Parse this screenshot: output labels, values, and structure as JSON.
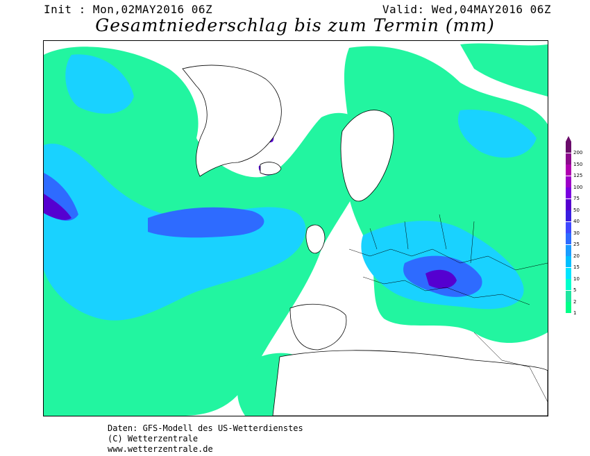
{
  "header": {
    "init": "Init : Mon,02MAY2016 06Z",
    "valid": "Valid: Wed,04MAY2016 06Z",
    "title": "Gesamtniederschlag bis zum Termin (mm)"
  },
  "legend": {
    "values": [
      "1",
      "2",
      "5",
      "10",
      "15",
      "20",
      "25",
      "30",
      "40",
      "50",
      "75",
      "100",
      "125",
      "150",
      "200"
    ],
    "colors": [
      "#00ff88",
      "#1ee6a0",
      "#00ffcc",
      "#00e5ff",
      "#00bfff",
      "#1a9cff",
      "#2e6bff",
      "#3f48ff",
      "#3a1ee0",
      "#5500d0",
      "#7a00e0",
      "#9d00c8",
      "#b000b0",
      "#8c0a8c",
      "#6a0c6a"
    ]
  },
  "footer": {
    "line1": "Daten: GFS-Modell des US-Wetterdienstes",
    "line2": "(C) Wetterzentrale",
    "line3": "www.wetterzentrale.de"
  }
}
